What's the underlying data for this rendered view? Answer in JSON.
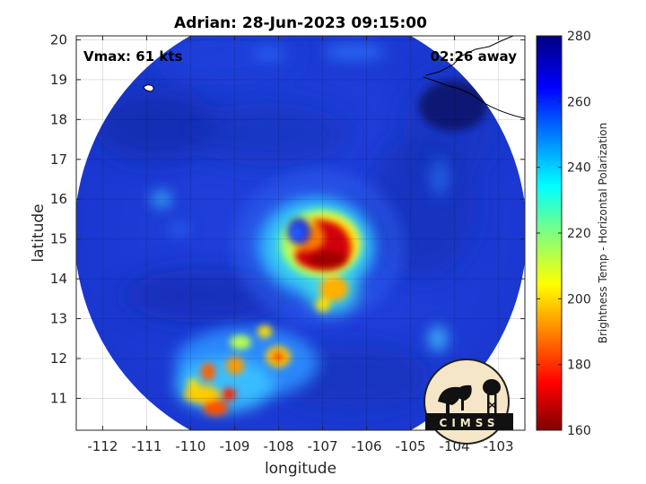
{
  "chart_data": {
    "type": "heatmap",
    "title": "Adrian: 28-Jun-2023 09:15:00",
    "xlabel": "longitude",
    "ylabel": "latitude",
    "xlim": [
      -112.6,
      -102.4
    ],
    "ylim": [
      10.2,
      20.1
    ],
    "x_ticks": [
      -112,
      -111,
      -110,
      -109,
      -108,
      -107,
      -106,
      -105,
      -104,
      -103
    ],
    "y_ticks": [
      11,
      12,
      13,
      14,
      15,
      16,
      17,
      18,
      19,
      20
    ],
    "grid": true,
    "colorbar": {
      "label": "Brightness Temp - Horizontal Polarization",
      "range": [
        160,
        280
      ],
      "ticks": [
        160,
        180,
        200,
        220,
        240,
        260,
        280
      ],
      "colormap": "jet"
    },
    "storm_center": {
      "lon": -107.2,
      "lat": 14.8
    },
    "annotations": {
      "vmax": "Vmax: 61 kts",
      "time_offset": "02:26 away"
    }
  },
  "logo": {
    "text": "CIMSS"
  },
  "colors": {
    "background_blue": "#1f3fd6",
    "deep_blue": "#0a1f9a",
    "red_core": "#c8000a"
  }
}
